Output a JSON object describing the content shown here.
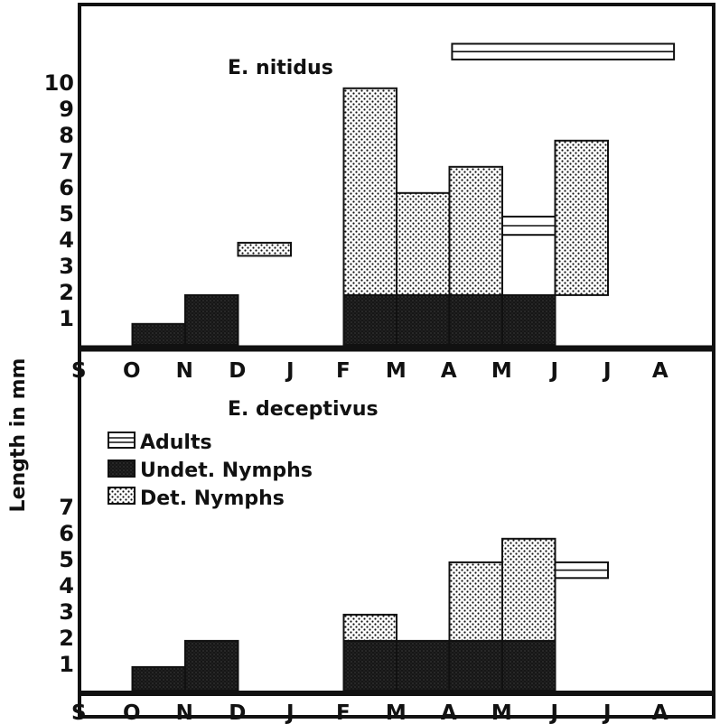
{
  "chart_data": [
    {
      "type": "bar",
      "title": "E. nitidus",
      "ylabel": "Length in mm",
      "categories": [
        "S",
        "O",
        "N",
        "D",
        "J",
        "F",
        "M",
        "A",
        "M",
        "J",
        "J",
        "A"
      ],
      "y_ticks": [
        "1",
        "2",
        "3",
        "4",
        "5",
        "6",
        "7",
        "8",
        "9",
        "10"
      ],
      "ylim": [
        0,
        10
      ],
      "series": [
        {
          "name": "Undet. Nymphs",
          "ranges": [
            {
              "category_index": 1,
              "from": 0,
              "to": 0.8
            },
            {
              "category_index": 2,
              "from": 0,
              "to": 1.9
            },
            {
              "category_index": 5,
              "from": 0,
              "to": 1.9
            },
            {
              "category_index": 6,
              "from": 0,
              "to": 1.9
            },
            {
              "category_index": 7,
              "from": 0,
              "to": 1.9
            },
            {
              "category_index": 8,
              "from": 0,
              "to": 1.9
            }
          ]
        },
        {
          "name": "Det. Nymphs",
          "ranges": [
            {
              "category_index": 3,
              "from": 3.4,
              "to": 3.9
            },
            {
              "category_index": 5,
              "from": 1.9,
              "to": 9.8
            },
            {
              "category_index": 6,
              "from": 1.9,
              "to": 5.8
            },
            {
              "category_index": 7,
              "from": 1.9,
              "to": 6.8
            },
            {
              "category_index": 9,
              "from": 1.9,
              "to": 7.8
            }
          ]
        },
        {
          "name": "Adults",
          "ranges": [
            {
              "category_index": 8,
              "from": 4.2,
              "to": 4.9
            },
            {
              "category_index": 7,
              "category_end_index": 11,
              "from": 10.9,
              "to": 11.5
            }
          ]
        }
      ]
    },
    {
      "type": "bar",
      "title": "E. deceptivus",
      "ylabel": "Length in mm",
      "categories": [
        "S",
        "O",
        "N",
        "D",
        "J",
        "F",
        "M",
        "A",
        "M",
        "J",
        "J",
        "A"
      ],
      "y_ticks": [
        "1",
        "2",
        "3",
        "4",
        "5",
        "6",
        "7"
      ],
      "ylim": [
        0,
        7
      ],
      "series": [
        {
          "name": "Undet. Nymphs",
          "ranges": [
            {
              "category_index": 1,
              "from": 0,
              "to": 0.9
            },
            {
              "category_index": 2,
              "from": 0,
              "to": 1.9
            },
            {
              "category_index": 5,
              "from": 0,
              "to": 1.9
            },
            {
              "category_index": 6,
              "from": 0,
              "to": 1.9
            },
            {
              "category_index": 7,
              "from": 0,
              "to": 1.9
            },
            {
              "category_index": 8,
              "from": 0,
              "to": 1.9
            }
          ]
        },
        {
          "name": "Det. Nymphs",
          "ranges": [
            {
              "category_index": 5,
              "from": 1.9,
              "to": 2.9
            },
            {
              "category_index": 7,
              "from": 1.9,
              "to": 4.9
            },
            {
              "category_index": 8,
              "from": 1.9,
              "to": 5.8
            }
          ]
        },
        {
          "name": "Adults",
          "ranges": [
            {
              "category_index": 9,
              "from": 4.3,
              "to": 4.9
            }
          ]
        }
      ]
    }
  ],
  "legend": {
    "items": [
      {
        "label": "Adults",
        "pattern": "adults"
      },
      {
        "label": "Undet. Nymphs",
        "pattern": "undet"
      },
      {
        "label": "Det. Nymphs",
        "pattern": "det"
      }
    ]
  },
  "colors": {
    "ink": "#111111",
    "paper": "#ffffff"
  }
}
